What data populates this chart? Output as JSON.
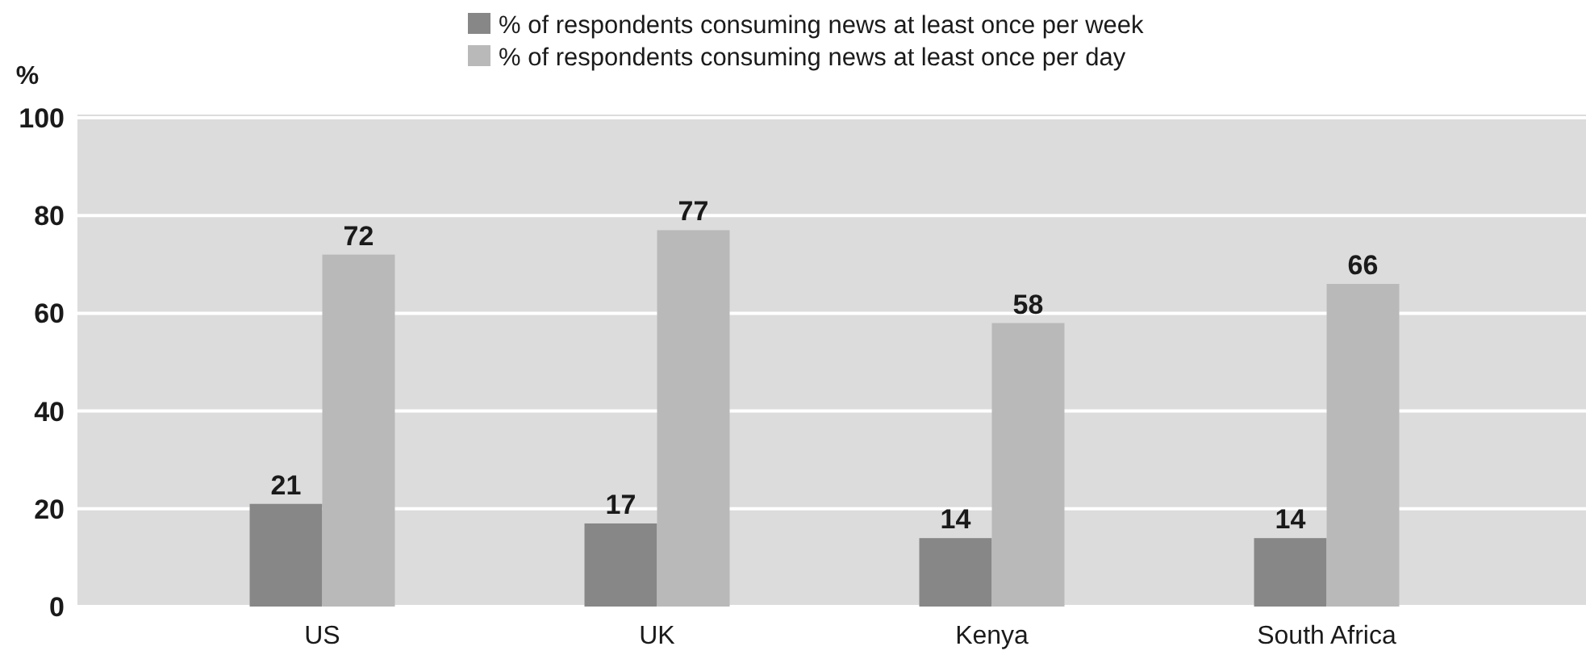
{
  "chart_data": {
    "type": "bar",
    "ylabel": "%",
    "categories": [
      "US",
      "UK",
      "Kenya",
      "South Africa"
    ],
    "series": [
      {
        "name": "% of respondents consuming news at least once per week",
        "color": "#878787",
        "values": [
          21,
          17,
          14,
          14
        ]
      },
      {
        "name": "% of respondents consuming news at least once per day",
        "color": "#b9b9b9",
        "values": [
          72,
          77,
          58,
          66
        ]
      }
    ],
    "ylim": [
      0,
      100
    ],
    "yticks": [
      0,
      20,
      40,
      60,
      80,
      100
    ],
    "grid": "y",
    "legend": "top",
    "data_labels": true
  }
}
